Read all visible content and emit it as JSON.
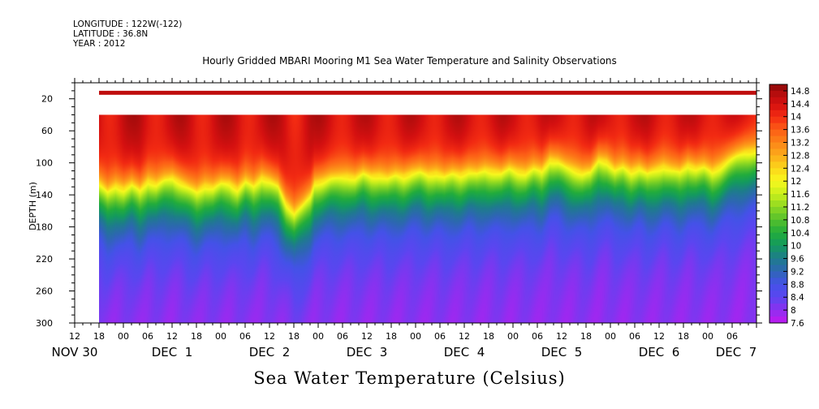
{
  "header": {
    "longitude": "LONGITUDE : 122W(-122)",
    "latitude": "LATITUDE : 36.8N",
    "year": "YEAR : 2012"
  },
  "chart_data": {
    "type": "heatmap",
    "title": "Hourly Gridded MBARI Mooring M1 Sea Water Temperature and Salinity Observations",
    "variable_title": "Sea Water Temperature (Celsius)",
    "ylabel": "DEPTH (m)",
    "xlabel": "",
    "ylim": [
      300,
      0
    ],
    "x_range_hours": [
      0,
      168
    ],
    "y_ticks": [
      20,
      60,
      100,
      140,
      180,
      220,
      260,
      300
    ],
    "x_hour_ticks": [
      {
        "h": 0,
        "label": "12"
      },
      {
        "h": 6,
        "label": "18"
      },
      {
        "h": 12,
        "label": "00"
      },
      {
        "h": 18,
        "label": "06"
      },
      {
        "h": 24,
        "label": "12"
      },
      {
        "h": 30,
        "label": "18"
      },
      {
        "h": 36,
        "label": "00"
      },
      {
        "h": 42,
        "label": "06"
      },
      {
        "h": 48,
        "label": "12"
      },
      {
        "h": 54,
        "label": "18"
      },
      {
        "h": 60,
        "label": "00"
      },
      {
        "h": 66,
        "label": "06"
      },
      {
        "h": 72,
        "label": "12"
      },
      {
        "h": 78,
        "label": "18"
      },
      {
        "h": 84,
        "label": "00"
      },
      {
        "h": 90,
        "label": "06"
      },
      {
        "h": 96,
        "label": "12"
      },
      {
        "h": 102,
        "label": "18"
      },
      {
        "h": 108,
        "label": "00"
      },
      {
        "h": 114,
        "label": "06"
      },
      {
        "h": 120,
        "label": "12"
      },
      {
        "h": 126,
        "label": "18"
      },
      {
        "h": 132,
        "label": "00"
      },
      {
        "h": 138,
        "label": "06"
      },
      {
        "h": 144,
        "label": "12"
      },
      {
        "h": 150,
        "label": "18"
      },
      {
        "h": 156,
        "label": "00"
      },
      {
        "h": 162,
        "label": "06"
      }
    ],
    "date_labels": [
      {
        "h": 0,
        "label": "NOV 30"
      },
      {
        "h": 24,
        "label": "DEC  1"
      },
      {
        "h": 48,
        "label": "DEC  2"
      },
      {
        "h": 72,
        "label": "DEC  3"
      },
      {
        "h": 96,
        "label": "DEC  4"
      },
      {
        "h": 120,
        "label": "DEC  5"
      },
      {
        "h": 144,
        "label": "DEC  6"
      },
      {
        "h": 163,
        "label": "DEC  7"
      }
    ],
    "data_start_hour": 6,
    "surface_band": {
      "depth_top": 10,
      "depth_bottom": 15,
      "value": 14.6
    },
    "data_top_depth": 40,
    "data_bottom_depth": 300,
    "thermocline": {
      "hours": [
        6,
        8,
        10,
        12,
        14,
        16,
        18,
        20,
        22,
        24,
        26,
        28,
        30,
        32,
        34,
        36,
        38,
        40,
        42,
        44,
        46,
        48,
        50,
        52,
        54,
        56,
        58,
        59,
        61,
        63,
        65,
        67,
        69,
        71,
        73,
        75,
        77,
        79,
        81,
        83,
        85,
        87,
        89,
        91,
        93,
        95,
        97,
        99,
        101,
        103,
        105,
        107,
        109,
        111,
        113,
        115,
        117,
        119,
        121,
        123,
        125,
        127,
        129,
        131,
        133,
        135,
        137,
        139,
        141,
        143,
        145,
        147,
        149,
        151,
        153,
        155,
        157,
        159,
        161,
        163,
        165,
        168
      ],
      "depths": [
        125,
        135,
        128,
        132,
        126,
        133,
        122,
        126,
        120,
        118,
        124,
        130,
        135,
        128,
        130,
        124,
        125,
        132,
        122,
        128,
        118,
        122,
        128,
        150,
        162,
        152,
        140,
        125,
        122,
        118,
        117,
        116,
        118,
        112,
        116,
        115,
        118,
        114,
        116,
        112,
        110,
        114,
        112,
        116,
        112,
        114,
        110,
        112,
        108,
        110,
        112,
        106,
        110,
        112,
        106,
        109,
        96,
        98,
        104,
        108,
        112,
        110,
        96,
        98,
        108,
        104,
        110,
        106,
        112,
        108,
        104,
        108,
        110,
        102,
        106,
        104,
        110,
        104,
        96,
        90,
        86,
        84
      ]
    },
    "colorbar": {
      "min": 7.6,
      "max": 15.0,
      "step": 0.2,
      "labels": [
        "14.8",
        "14.4",
        "14",
        "13.6",
        "13.2",
        "12.8",
        "12.4",
        "12",
        "11.6",
        "11.2",
        "10.8",
        "10.4",
        "10",
        "9.6",
        "9.2",
        "8.8",
        "8.4",
        "8",
        "7.6"
      ]
    },
    "colors": {
      "stops": [
        {
          "v": 7.6,
          "c": "#c218f0"
        },
        {
          "v": 8.0,
          "c": "#8c30f0"
        },
        {
          "v": 8.4,
          "c": "#5a46f0"
        },
        {
          "v": 8.8,
          "c": "#4452e8"
        },
        {
          "v": 9.2,
          "c": "#2e66b4"
        },
        {
          "v": 9.6,
          "c": "#1e7c8c"
        },
        {
          "v": 10.0,
          "c": "#149a5e"
        },
        {
          "v": 10.4,
          "c": "#22ac3c"
        },
        {
          "v": 10.8,
          "c": "#56c02c"
        },
        {
          "v": 11.2,
          "c": "#8ed822"
        },
        {
          "v": 11.6,
          "c": "#c8ee1c"
        },
        {
          "v": 12.0,
          "c": "#f8f81e"
        },
        {
          "v": 12.4,
          "c": "#fcd61a"
        },
        {
          "v": 12.8,
          "c": "#fcaa1a"
        },
        {
          "v": 13.2,
          "c": "#fc8418"
        },
        {
          "v": 13.6,
          "c": "#fc5c16"
        },
        {
          "v": 14.0,
          "c": "#f22a12"
        },
        {
          "v": 14.4,
          "c": "#d41010"
        },
        {
          "v": 14.8,
          "c": "#aa0c0c"
        },
        {
          "v": 15.0,
          "c": "#8a0808"
        }
      ]
    }
  }
}
